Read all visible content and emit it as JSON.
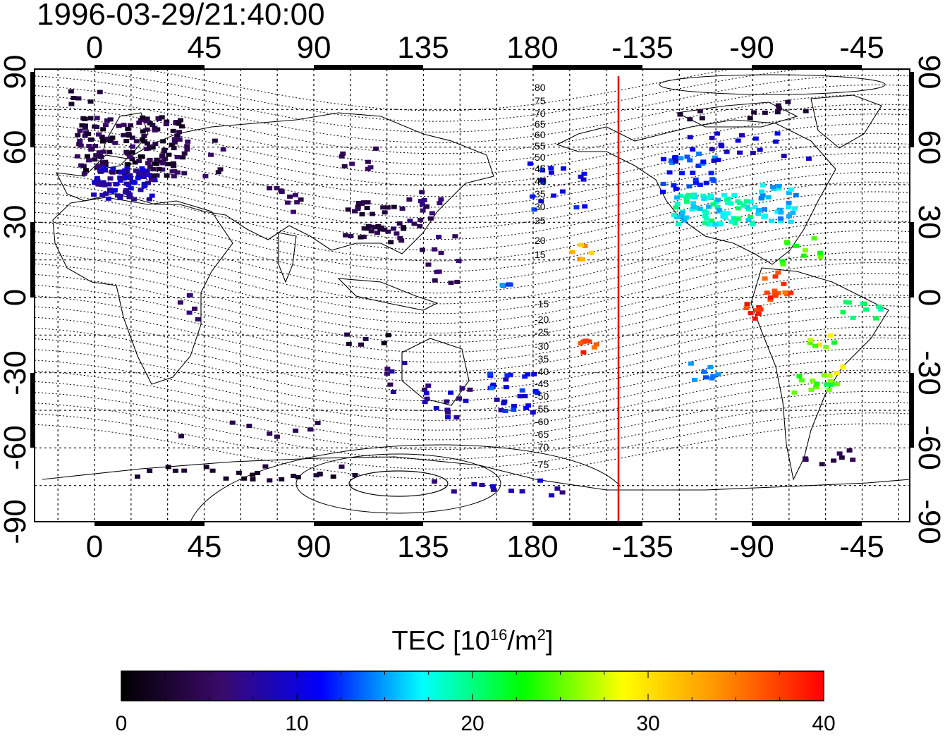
{
  "timestamp": "1996-03-29/21:40:00",
  "map": {
    "lon_ticks": [
      "0",
      "45",
      "90",
      "135",
      "180",
      "-135",
      "-90",
      "-45"
    ],
    "lat_ticks": [
      "90",
      "60",
      "30",
      "0",
      "-30",
      "-60",
      "-90"
    ],
    "contour_labels": [
      "80",
      "75",
      "70",
      "65",
      "60",
      "55",
      "50",
      "45",
      "40",
      "35",
      "30",
      "25",
      "20",
      "15",
      "-15",
      "-20",
      "-25",
      "-30",
      "-35",
      "-40",
      "-45",
      "-50",
      "-55",
      "-60",
      "-65",
      "-70",
      "-75"
    ],
    "terminator_color": "#e00000",
    "grid_lon_step_deg": 15,
    "grid_lat_step_deg": 15
  },
  "colorbar": {
    "label_main": "TEC  [10",
    "label_sup": "16",
    "label_unit": "/m",
    "label_sup2": "2",
    "label_end": "]",
    "min": 0,
    "max": 40,
    "tick_labels": [
      "0",
      "10",
      "20",
      "30",
      "40"
    ],
    "stops": [
      "#000000",
      "#3a0a6a",
      "#0000ff",
      "#00ffff",
      "#00ff00",
      "#ffff00",
      "#ff8c00",
      "#ff0000"
    ]
  }
}
